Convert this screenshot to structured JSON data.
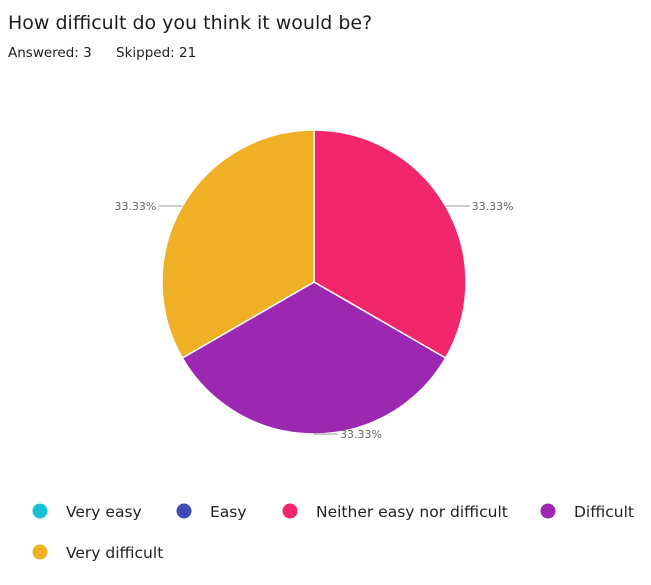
{
  "question": {
    "title": "How difficult do you think it would be?",
    "answered": "Answered: 3",
    "skipped": "Skipped: 21"
  },
  "chart_data": {
    "type": "pie",
    "title": "",
    "categories": [
      "Very easy",
      "Easy",
      "Neither easy nor difficult",
      "Difficult",
      "Very difficult"
    ],
    "values": [
      0,
      0,
      33.33,
      33.33,
      33.33
    ],
    "labels": [
      "",
      "",
      "33.33%",
      "33.33%",
      "33.33%"
    ],
    "colors": [
      "#18c0d4",
      "#3d4db5",
      "#f2266a",
      "#9c27b0",
      "#f0b025"
    ],
    "legend_placement": "bottom"
  }
}
